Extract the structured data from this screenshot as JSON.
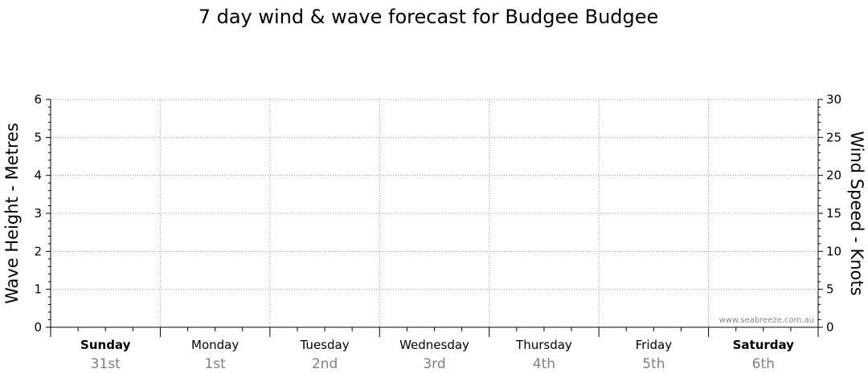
{
  "chart_data": {
    "type": "line",
    "title": "7 day wind & wave forecast for Budgee Budgee",
    "ylabel_left": "Wave Height - Metres",
    "ylabel_right": "Wind Speed - Knots",
    "ylim_left": [
      0,
      6
    ],
    "ylim_right": [
      0,
      30
    ],
    "left_ticks": [
      "0",
      "1",
      "2",
      "3",
      "4",
      "5",
      "6"
    ],
    "right_ticks": [
      "0",
      "5",
      "10",
      "15",
      "20",
      "25",
      "30"
    ],
    "days": [
      {
        "name": "Sunday",
        "date": "31st",
        "bold": true
      },
      {
        "name": "Monday",
        "date": "1st",
        "bold": false
      },
      {
        "name": "Tuesday",
        "date": "2nd",
        "bold": false
      },
      {
        "name": "Wednesday",
        "date": "3rd",
        "bold": false
      },
      {
        "name": "Thursday",
        "date": "4th",
        "bold": false
      },
      {
        "name": "Friday",
        "date": "5th",
        "bold": false
      },
      {
        "name": "Saturday",
        "date": "6th",
        "bold": true
      }
    ],
    "series": [],
    "grid": true,
    "watermark": "www.seabreeze.com.au"
  },
  "colors": {
    "axis": "#000000",
    "grid": "#999999",
    "date": "#808080"
  }
}
